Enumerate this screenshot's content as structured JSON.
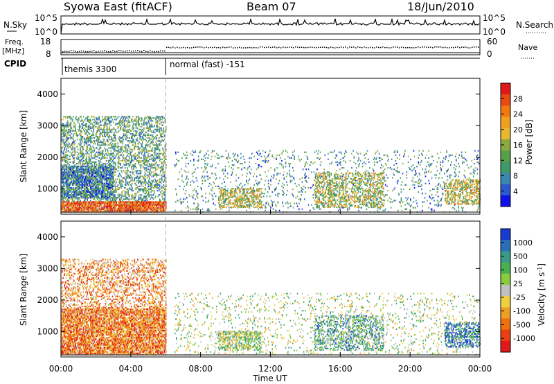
{
  "header": {
    "station": "Syowa East (fitACF)",
    "beam": "Beam 07",
    "date": "18/Jun/2010"
  },
  "panels": {
    "nsky": {
      "label": "N.Sky",
      "tick_top": "10^5",
      "tick_bottom": "10^0",
      "right_label": "N.Search",
      "right_tick_top": "10^5",
      "right_tick_bottom": "10^0"
    },
    "freq": {
      "label_line1": "Freq.",
      "label_line2": "[MHz]",
      "tick_top": "18",
      "tick_bottom": "8",
      "right_label": "Nave",
      "right_tick_top": "60",
      "right_tick_bottom": "0"
    },
    "cpid": {
      "label": "CPID",
      "segment1": "themis 3300",
      "segment2": "normal (fast) -151",
      "change_time_h": 6.0
    }
  },
  "chart_data": [
    {
      "type": "heatmap",
      "name": "power",
      "ylabel": "Slant Range [km]",
      "ylim": [
        200,
        4500
      ],
      "yticks": [
        "1000",
        "2000",
        "3000",
        "4000"
      ],
      "xlim": [
        0,
        24
      ],
      "colorbar": {
        "label": "Power [dB]",
        "ticks": [
          "4",
          "8",
          "12",
          "16",
          "20",
          "24",
          "28"
        ],
        "colors": [
          "#1010e8",
          "#2a5ad0",
          "#3a88b0",
          "#3f9a6a",
          "#56a04a",
          "#8aaa40",
          "#e8b830",
          "#f0a020",
          "#f07a10",
          "#e84a10",
          "#e01818"
        ]
      },
      "echo_regions": [
        {
          "t0": 0.0,
          "t1": 6.0,
          "r0": 250,
          "r1": 3300,
          "density": 0.35,
          "level": 0.35
        },
        {
          "t0": 0.0,
          "t1": 6.0,
          "r0": 250,
          "r1": 600,
          "density": 0.75,
          "level": 0.85
        },
        {
          "t0": 0.0,
          "t1": 3.0,
          "r0": 700,
          "r1": 1700,
          "density": 0.6,
          "level": 0.25
        },
        {
          "t0": 6.5,
          "t1": 24.0,
          "r0": 250,
          "r1": 2200,
          "density": 0.08,
          "level": 0.3
        },
        {
          "t0": 9.0,
          "t1": 11.5,
          "r0": 400,
          "r1": 1000,
          "density": 0.4,
          "level": 0.55
        },
        {
          "t0": 14.5,
          "t1": 18.5,
          "r0": 400,
          "r1": 1500,
          "density": 0.35,
          "level": 0.5
        },
        {
          "t0": 22.0,
          "t1": 24.0,
          "r0": 500,
          "r1": 1300,
          "density": 0.4,
          "level": 0.55
        }
      ]
    },
    {
      "type": "heatmap",
      "name": "velocity",
      "ylabel": "Slant Range [km]",
      "ylim": [
        200,
        4500
      ],
      "yticks": [
        "1000",
        "2000",
        "3000",
        "4000"
      ],
      "xlim": [
        0,
        24
      ],
      "xlabel": "Time UT",
      "xticks": [
        "00:00",
        "04:00",
        "08:00",
        "12:00",
        "16:00",
        "20:00",
        "00:00"
      ],
      "colorbar": {
        "label": "Velocity [m s-1]",
        "ticks": [
          "1000",
          "500",
          "100",
          "25",
          "-25",
          "-100",
          "-500",
          "-1000"
        ],
        "colors": [
          "#1a3ad0",
          "#2a70b8",
          "#3a9a8a",
          "#48b050",
          "#88cc40",
          "#c0c0c0",
          "#f0d040",
          "#f0a020",
          "#f07010",
          "#e84010",
          "#e01818"
        ]
      },
      "echo_regions": [
        {
          "t0": 0.0,
          "t1": 6.0,
          "r0": 250,
          "r1": 3300,
          "density": 0.3,
          "level": 0.7
        },
        {
          "t0": 0.0,
          "t1": 6.0,
          "r0": 250,
          "r1": 1700,
          "density": 0.6,
          "level": 0.75
        },
        {
          "t0": 6.5,
          "t1": 24.0,
          "r0": 250,
          "r1": 2200,
          "density": 0.08,
          "level": 0.45
        },
        {
          "t0": 9.0,
          "t1": 11.5,
          "r0": 400,
          "r1": 1000,
          "density": 0.4,
          "level": 0.45
        },
        {
          "t0": 14.5,
          "t1": 18.5,
          "r0": 400,
          "r1": 1500,
          "density": 0.35,
          "level": 0.3
        },
        {
          "t0": 22.0,
          "t1": 24.0,
          "r0": 500,
          "r1": 1300,
          "density": 0.4,
          "level": 0.15
        }
      ]
    }
  ]
}
